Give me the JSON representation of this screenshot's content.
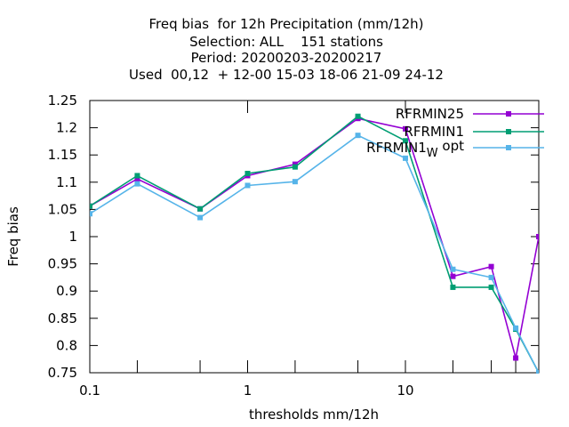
{
  "chart_data": {
    "type": "line",
    "title_lines": [
      "Freq bias  for 12h Precipitation (mm/12h)",
      "Selection: ALL    151 stations",
      "Period: 20200203-20200217",
      "Used  00,12  + 12-00 15-03 18-06 21-09 24-12"
    ],
    "xlabel": "thresholds mm/12h",
    "ylabel": "Freq bias",
    "xscale": "log",
    "xlim": [
      0.1,
      70
    ],
    "ylim": [
      0.75,
      1.25
    ],
    "xticks": [
      {
        "value": 0.1,
        "label": "0.1"
      },
      {
        "value": 1,
        "label": "1"
      },
      {
        "value": 10,
        "label": "10"
      }
    ],
    "xticks_unlabeled": [
      0.2,
      0.5,
      2,
      5,
      20,
      35,
      50,
      70
    ],
    "yticks": [
      {
        "value": 0.75,
        "label": "0.75"
      },
      {
        "value": 0.8,
        "label": "0.8"
      },
      {
        "value": 0.85,
        "label": "0.85"
      },
      {
        "value": 0.9,
        "label": "0.9"
      },
      {
        "value": 0.95,
        "label": "0.95"
      },
      {
        "value": 1.0,
        "label": "1"
      },
      {
        "value": 1.05,
        "label": "1.05"
      },
      {
        "value": 1.1,
        "label": "1.1"
      },
      {
        "value": 1.15,
        "label": "1.15"
      },
      {
        "value": 1.2,
        "label": "1.2"
      },
      {
        "value": 1.25,
        "label": "1.25"
      }
    ],
    "grid": false,
    "legend_position": "top-right",
    "x": [
      0.1,
      0.2,
      0.5,
      1,
      2,
      5,
      10,
      20,
      35,
      50,
      70
    ],
    "series": [
      {
        "name": "RFRMIN25",
        "legend_main": "RFRMIN25",
        "legend_sub": "",
        "legend_tail": "",
        "color": "#9400d3",
        "values": [
          1.056,
          1.106,
          1.051,
          1.112,
          1.133,
          1.217,
          1.198,
          0.927,
          0.945,
          0.777,
          1.0
        ]
      },
      {
        "name": "RFRMIN1",
        "legend_main": "RFRMIN1",
        "legend_sub": "",
        "legend_tail": "",
        "color": "#009e73",
        "values": [
          1.056,
          1.112,
          1.051,
          1.116,
          1.128,
          1.221,
          1.176,
          0.907,
          0.907,
          0.83,
          0.75
        ]
      },
      {
        "name": "RFRMIN1W opt",
        "legend_main": "RFRMIN1",
        "legend_sub": "W",
        "legend_tail": " opt",
        "color": "#56b4e9",
        "values": [
          1.042,
          1.097,
          1.035,
          1.094,
          1.101,
          1.186,
          1.144,
          0.94,
          0.925,
          0.832,
          0.75
        ]
      }
    ]
  }
}
